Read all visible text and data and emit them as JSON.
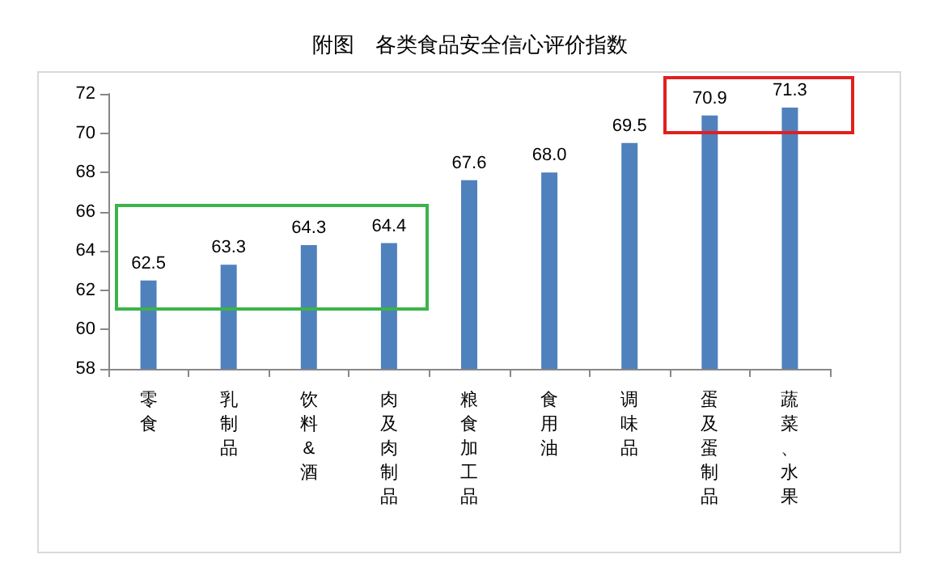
{
  "chart_data": {
    "type": "bar",
    "title": "附图　各类食品安全信心评价指数",
    "categories": [
      "零食",
      "乳制品",
      "饮料&酒",
      "肉及肉制品",
      "粮食加工品",
      "食用油",
      "调味品",
      "蛋及蛋制品",
      "蔬菜、水果"
    ],
    "values": [
      62.5,
      63.3,
      64.3,
      64.4,
      67.6,
      68.0,
      69.5,
      70.9,
      71.3
    ],
    "value_labels": [
      "62.5",
      "63.3",
      "64.3",
      "64.4",
      "67.6",
      "68.0",
      "69.5",
      "70.9",
      "71.3"
    ],
    "color": "#4f81bd",
    "ylim": [
      58,
      72
    ],
    "yticks": [
      58,
      60,
      62,
      64,
      66,
      68,
      70,
      72
    ],
    "grid": false
  }
}
